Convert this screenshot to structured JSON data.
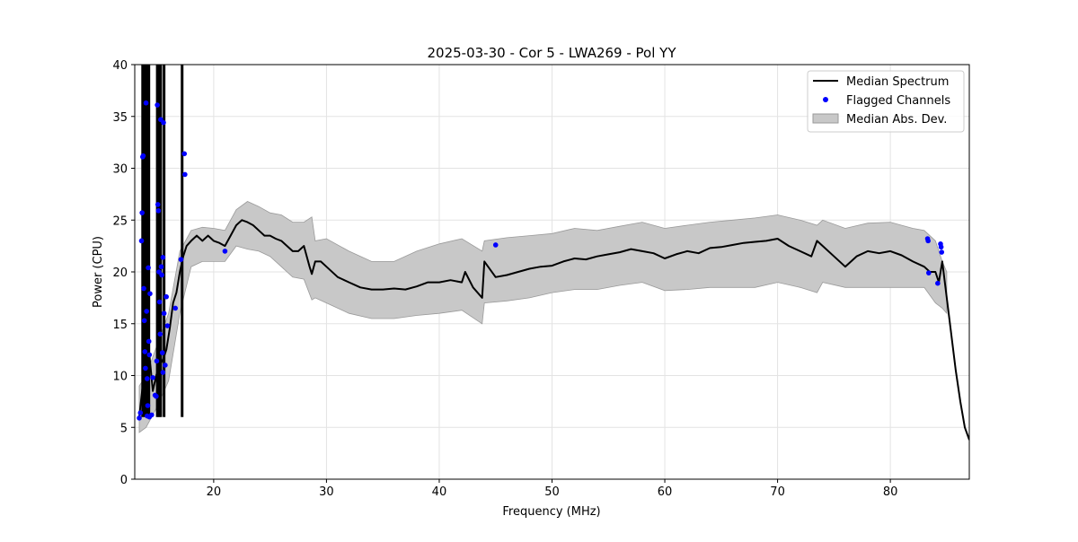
{
  "chart_data": {
    "type": "line",
    "title": "2025-03-30 - Cor 5 - LWA269 - Pol YY",
    "xlabel": "Frequency (MHz)",
    "ylabel": "Power (CPU)",
    "xlim": [
      13,
      87
    ],
    "ylim": [
      0,
      40
    ],
    "xticks": [
      20,
      30,
      40,
      50,
      60,
      70,
      80
    ],
    "yticks": [
      0,
      5,
      10,
      15,
      20,
      25,
      30,
      35,
      40
    ],
    "grid": true,
    "legend_position": "top-right",
    "colors": {
      "line": "#000000",
      "flagged": "#0000ff",
      "band": "#c8c8c8",
      "band_edge": "#9a9a9a"
    },
    "legend": [
      {
        "label": "Median Spectrum",
        "kind": "line"
      },
      {
        "label": "Flagged Channels",
        "kind": "dot"
      },
      {
        "label": "Median Abs. Dev.",
        "kind": "band"
      }
    ],
    "series": [
      {
        "name": "Median Spectrum",
        "x": [
          13.4,
          13.7,
          14.0,
          14.3,
          14.6,
          14.9,
          15.2,
          15.5,
          15.8,
          16.1,
          16.4,
          16.7,
          17.0,
          17.3,
          17.6,
          18.0,
          18.5,
          19.0,
          19.5,
          20.0,
          20.5,
          21.0,
          21.5,
          22.0,
          22.5,
          23.0,
          23.5,
          24.0,
          24.5,
          25.0,
          25.5,
          26.0,
          26.5,
          27.0,
          27.5,
          28.0,
          28.5,
          28.7,
          29.0,
          29.5,
          30.0,
          31.0,
          32.0,
          33.0,
          34.0,
          35.0,
          36.0,
          37.0,
          38.0,
          39.0,
          40.0,
          41.0,
          42.0,
          42.3,
          43.0,
          43.8,
          44.0,
          45.0,
          46.0,
          47.0,
          48.0,
          49.0,
          50.0,
          51.0,
          52.0,
          53.0,
          54.0,
          55.0,
          56.0,
          57.0,
          58.0,
          59.0,
          60.0,
          61.0,
          62.0,
          63.0,
          64.0,
          65.0,
          66.0,
          67.0,
          68.0,
          69.0,
          70.0,
          71.0,
          72.0,
          73.0,
          73.5,
          74.0,
          75.0,
          76.0,
          77.0,
          78.0,
          79.0,
          80.0,
          81.0,
          82.0,
          83.0,
          83.5,
          84.0,
          84.3,
          84.6,
          85.0,
          85.4,
          85.8,
          86.2,
          86.6,
          87.0
        ],
        "y": [
          6.0,
          9.0,
          7.0,
          12.0,
          8.5,
          10.0,
          11.0,
          11.5,
          12.5,
          14.5,
          17.0,
          18.0,
          20.0,
          21.5,
          22.5,
          23.0,
          23.5,
          23.0,
          23.5,
          23.0,
          22.8,
          22.5,
          23.5,
          24.5,
          25.0,
          24.8,
          24.5,
          24.0,
          23.5,
          23.5,
          23.2,
          23.0,
          22.5,
          22.0,
          22.0,
          22.5,
          20.5,
          19.8,
          21.0,
          21.0,
          20.5,
          19.5,
          19.0,
          18.5,
          18.3,
          18.3,
          18.4,
          18.3,
          18.6,
          19.0,
          19.0,
          19.2,
          19.0,
          20.0,
          18.5,
          17.5,
          21.0,
          19.5,
          19.7,
          20.0,
          20.3,
          20.5,
          20.6,
          21.0,
          21.3,
          21.2,
          21.5,
          21.7,
          21.9,
          22.2,
          22.0,
          21.8,
          21.3,
          21.7,
          22.0,
          21.8,
          22.3,
          22.4,
          22.6,
          22.8,
          22.9,
          23.0,
          23.2,
          22.5,
          22.0,
          21.5,
          23.0,
          22.5,
          21.5,
          20.5,
          21.5,
          22.0,
          21.8,
          22.0,
          21.6,
          21.0,
          20.5,
          20.0,
          20.0,
          19.0,
          21.0,
          17.5,
          14.0,
          10.5,
          7.5,
          5.0,
          3.8
        ]
      },
      {
        "name": "Flagged Channels",
        "points": [
          [
            13.4,
            5.9
          ],
          [
            13.5,
            6.4
          ],
          [
            13.6,
            23.0
          ],
          [
            13.65,
            25.7
          ],
          [
            13.7,
            31.1
          ],
          [
            13.75,
            31.2
          ],
          [
            13.8,
            18.4
          ],
          [
            13.85,
            15.3
          ],
          [
            13.9,
            12.3
          ],
          [
            13.95,
            10.7
          ],
          [
            14.0,
            36.3
          ],
          [
            14.05,
            16.2
          ],
          [
            14.1,
            9.7
          ],
          [
            14.1,
            6.1
          ],
          [
            14.15,
            7.1
          ],
          [
            14.2,
            20.4
          ],
          [
            14.25,
            13.3
          ],
          [
            14.3,
            12.0
          ],
          [
            14.3,
            6.0
          ],
          [
            14.35,
            17.9
          ],
          [
            14.5,
            6.2
          ],
          [
            14.6,
            9.8
          ],
          [
            14.8,
            8.1
          ],
          [
            14.9,
            8.0
          ],
          [
            14.95,
            11.4
          ],
          [
            15.0,
            36.1
          ],
          [
            15.05,
            26.5
          ],
          [
            15.1,
            25.9
          ],
          [
            15.15,
            20.0
          ],
          [
            15.2,
            17.1
          ],
          [
            15.25,
            14.0
          ],
          [
            15.3,
            34.7
          ],
          [
            15.35,
            20.5
          ],
          [
            15.4,
            19.7
          ],
          [
            15.45,
            12.2
          ],
          [
            15.5,
            21.4
          ],
          [
            15.5,
            10.3
          ],
          [
            15.55,
            34.4
          ],
          [
            15.6,
            16.0
          ],
          [
            15.7,
            11.0
          ],
          [
            15.8,
            17.6
          ],
          [
            15.9,
            14.8
          ],
          [
            16.6,
            16.5
          ],
          [
            17.1,
            21.2
          ],
          [
            17.4,
            31.4
          ],
          [
            17.45,
            29.4
          ],
          [
            21.0,
            22.0
          ],
          [
            45.0,
            22.6
          ],
          [
            83.3,
            23.2
          ],
          [
            83.35,
            23.0
          ],
          [
            83.4,
            19.9
          ],
          [
            84.2,
            18.9
          ],
          [
            84.45,
            22.7
          ],
          [
            84.5,
            22.4
          ],
          [
            84.55,
            21.9
          ]
        ]
      },
      {
        "name": "Median Abs. Dev.",
        "x": [
          13.4,
          14.0,
          15.0,
          16.0,
          17.0,
          18.0,
          19.0,
          20.0,
          21.0,
          22.0,
          23.0,
          24.0,
          25.0,
          26.0,
          27.0,
          28.0,
          28.7,
          29.0,
          30.0,
          32.0,
          34.0,
          36.0,
          38.0,
          40.0,
          42.0,
          43.8,
          44.0,
          46.0,
          48.0,
          50.0,
          52.0,
          54.0,
          56.0,
          58.0,
          60.0,
          62.0,
          64.0,
          66.0,
          68.0,
          70.0,
          72.0,
          73.5,
          74.0,
          76.0,
          78.0,
          80.0,
          82.0,
          83.0,
          84.0,
          84.6,
          85.0
        ],
        "upper": [
          9.0,
          10.0,
          13.0,
          16.0,
          22.0,
          24.0,
          24.3,
          24.2,
          24.0,
          26.0,
          26.8,
          26.3,
          25.7,
          25.5,
          24.8,
          24.8,
          25.3,
          23.0,
          23.2,
          22.0,
          21.0,
          21.0,
          22.0,
          22.7,
          23.2,
          22.0,
          23.0,
          23.3,
          23.5,
          23.7,
          24.2,
          24.0,
          24.4,
          24.8,
          24.2,
          24.5,
          24.8,
          25.0,
          25.2,
          25.5,
          25.0,
          24.5,
          25.0,
          24.2,
          24.7,
          24.8,
          24.2,
          24.0,
          23.0,
          21.0,
          20.0
        ],
        "lower": [
          4.5,
          5.0,
          7.0,
          9.5,
          16.0,
          20.5,
          21.0,
          21.0,
          21.0,
          22.5,
          22.2,
          22.0,
          21.5,
          20.5,
          19.5,
          19.3,
          17.3,
          17.5,
          17.0,
          16.0,
          15.5,
          15.5,
          15.8,
          16.0,
          16.3,
          15.0,
          17.0,
          17.2,
          17.5,
          18.0,
          18.3,
          18.3,
          18.7,
          19.0,
          18.2,
          18.3,
          18.5,
          18.5,
          18.5,
          19.0,
          18.5,
          18.0,
          19.0,
          18.5,
          18.5,
          18.5,
          18.5,
          18.5,
          17.0,
          16.5,
          16.0
        ]
      }
    ]
  }
}
